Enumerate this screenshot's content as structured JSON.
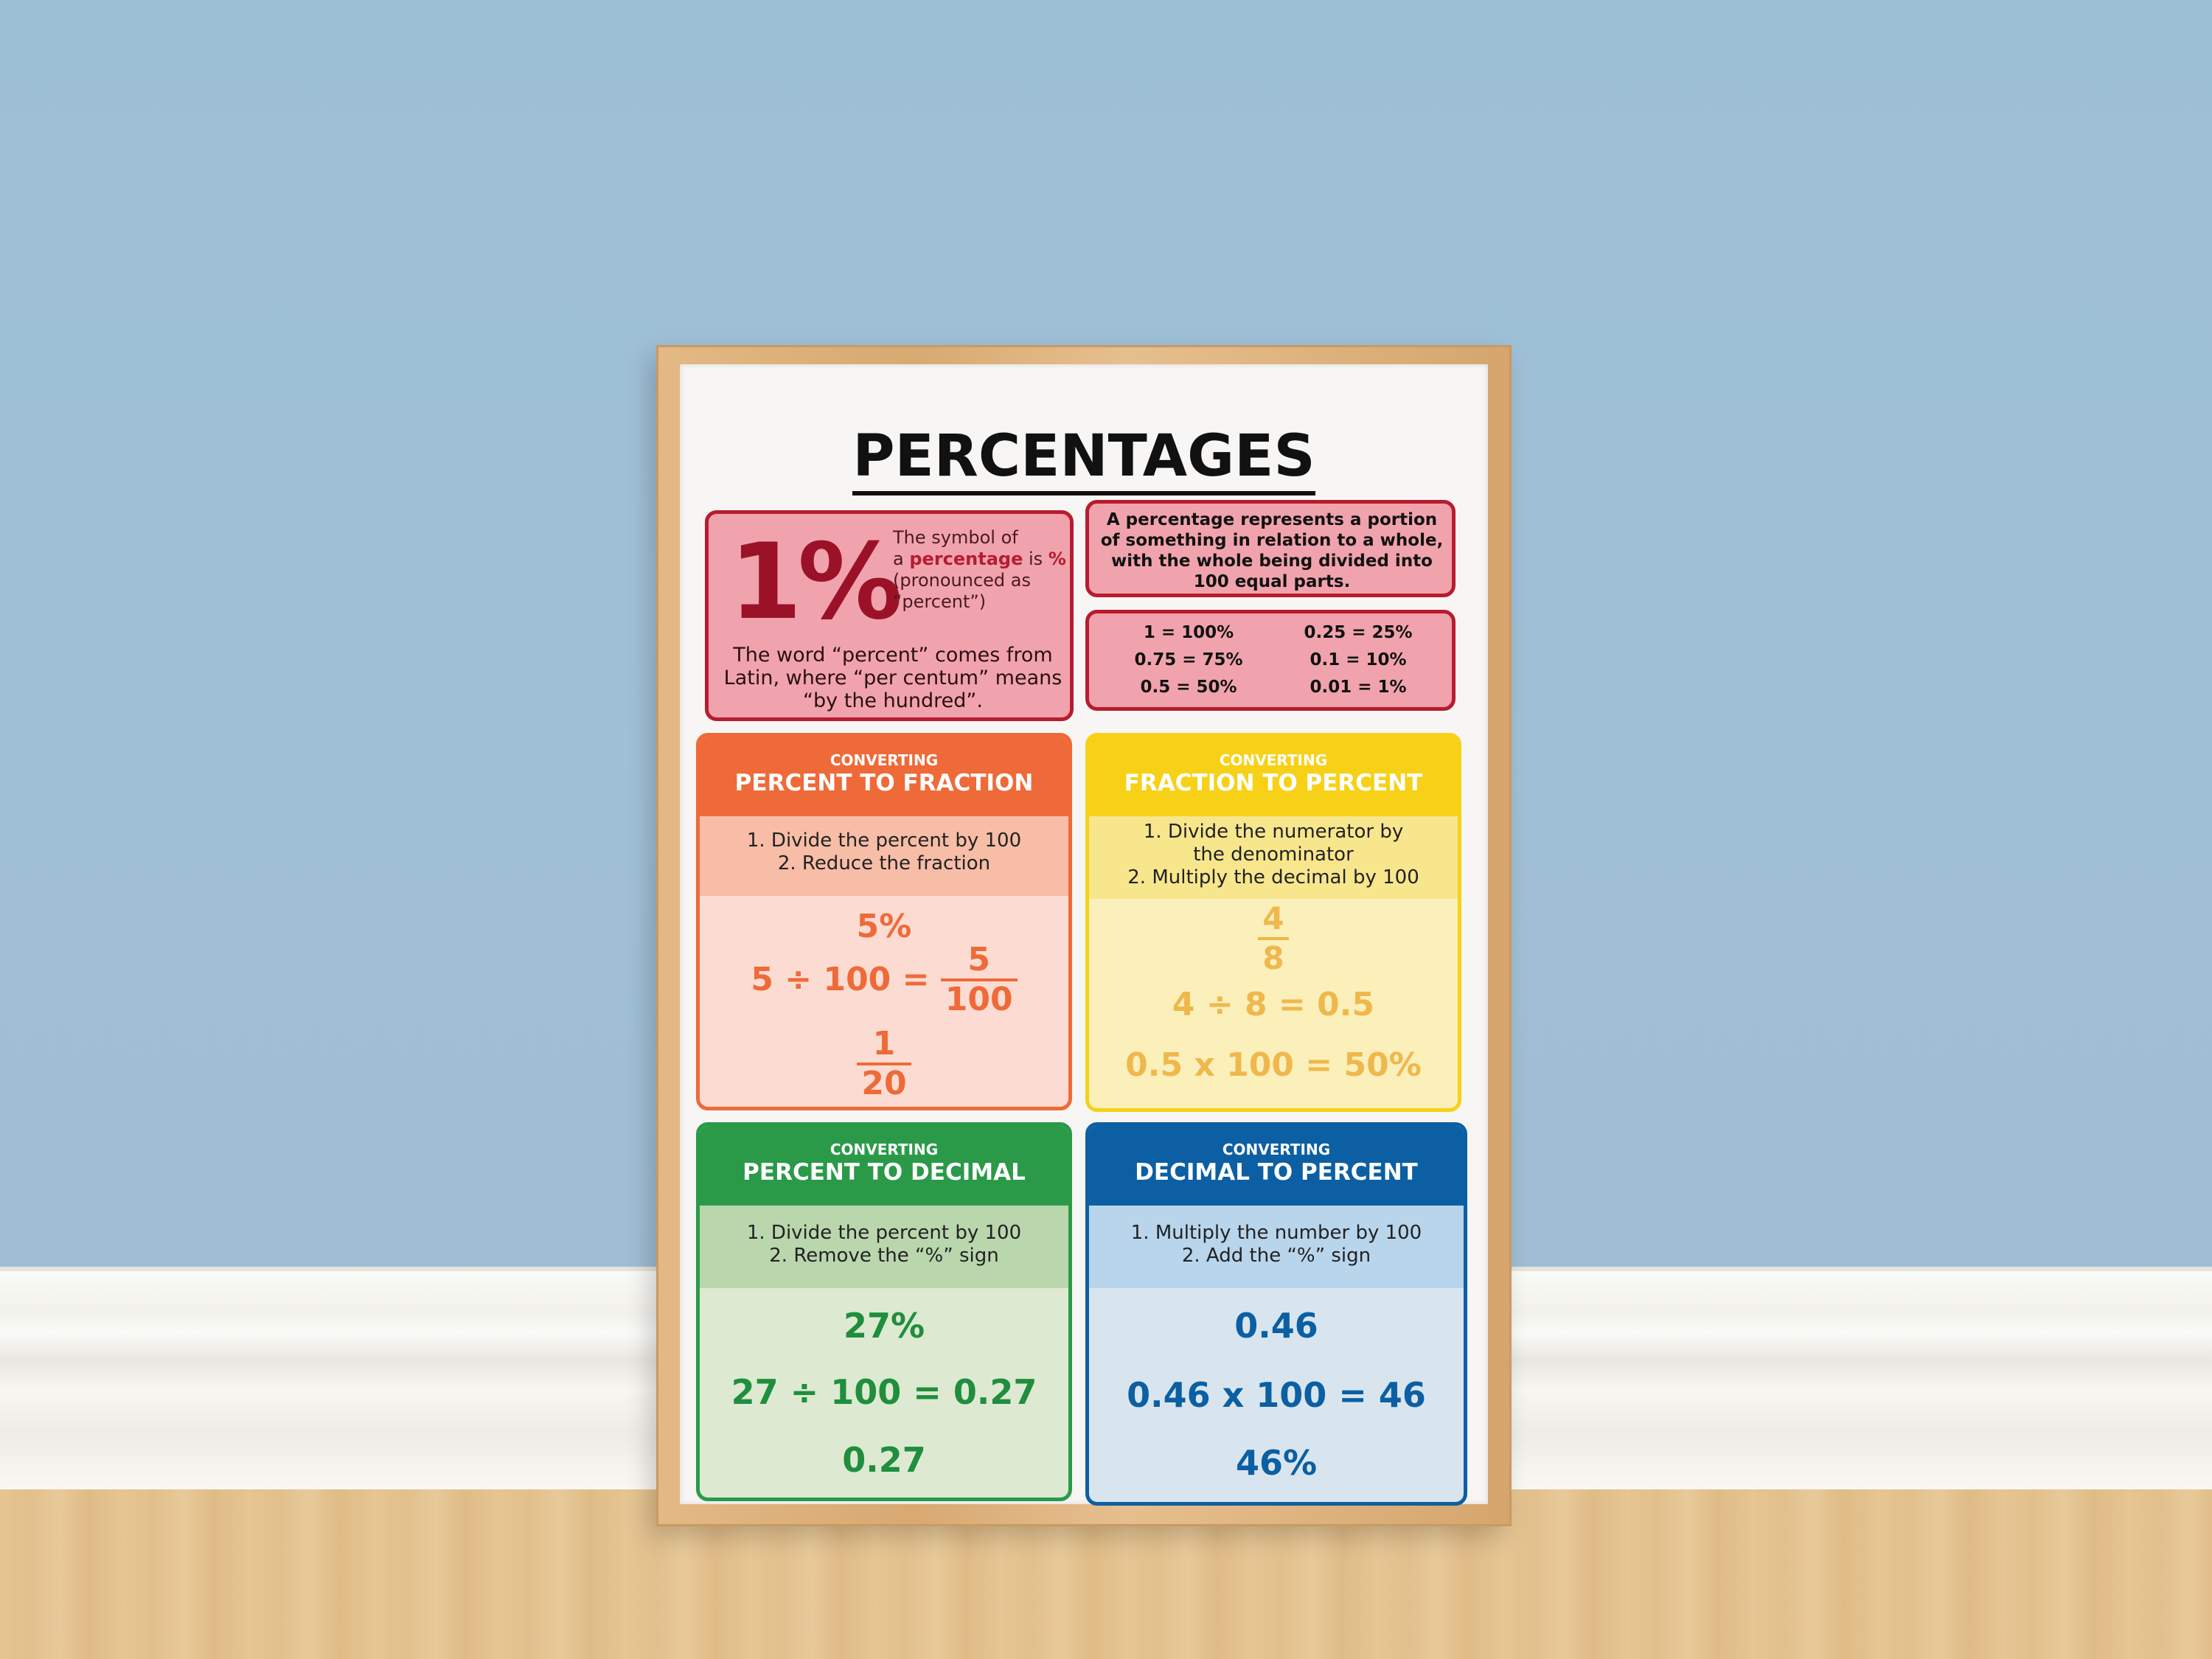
{
  "poster": {
    "title": "PERCENTAGES",
    "intro": {
      "big_symbol": "1%",
      "symbol_text_1": "The symbol of",
      "symbol_text_2": "a",
      "symbol_word": "percentage",
      "symbol_text_3": "is",
      "symbol_char": "%",
      "symbol_text_4": "(pronounced as “percent”)",
      "latin_text": "The word “percent” comes from Latin, where “per centum” means “by the hundred”."
    },
    "definition": "A percentage represents a portion of something in relation to a whole, with the whole being divided into 100 equal parts.",
    "equivalents": [
      "1 = 100%",
      "0.25 = 25%",
      "0.75 = 75%",
      "0.1 = 10%",
      "0.5 = 50%",
      "0.01 = 1%"
    ],
    "cards": {
      "percent_to_fraction": {
        "sub": "CONVERTING",
        "title": "PERCENT TO FRACTION",
        "step1": "1. Divide the percent by 100",
        "step2": "2. Reduce the fraction",
        "ex_start": "5%",
        "ex_calc": "5 ÷ 100 =",
        "ex_num": "5",
        "ex_den": "100",
        "res_num": "1",
        "res_den": "20"
      },
      "fraction_to_percent": {
        "sub": "CONVERTING",
        "title": "FRACTION TO PERCENT",
        "step1": "1. Divide the numerator by the denominator",
        "step2": "2. Multiply the decimal by 100",
        "ex_num": "4",
        "ex_den": "8",
        "ex_calc": "4 ÷ 8 = 0.5",
        "ex_result": "0.5 x 100 = 50%"
      },
      "percent_to_decimal": {
        "sub": "CONVERTING",
        "title": "PERCENT TO DECIMAL",
        "step1": "1. Divide the percent by 100",
        "step2": "2. Remove the “%” sign",
        "ex_start": "27%",
        "ex_calc": "27 ÷ 100 = 0.27",
        "ex_result": "0.27"
      },
      "decimal_to_percent": {
        "sub": "CONVERTING",
        "title": "DECIMAL TO PERCENT",
        "step1": "1. Multiply the number by 100",
        "step2": "2. Add the “%” sign",
        "ex_start": "0.46",
        "ex_calc": "0.46 x 100 = 46",
        "ex_result": "46%"
      }
    }
  },
  "colors": {
    "wall": "#9fbfd6",
    "red": "#b81b2f",
    "orange": "#ef6a39",
    "yellow": "#f7d117",
    "green": "#2a9a49",
    "blue": "#0c5fa2"
  }
}
